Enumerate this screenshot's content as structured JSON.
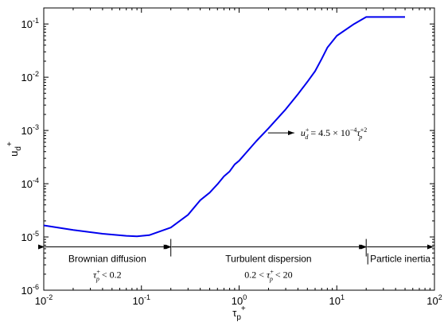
{
  "chart_data": {
    "type": "line",
    "xscale": "log",
    "yscale": "log",
    "xlim": [
      0.01,
      100
    ],
    "ylim": [
      1e-06,
      0.2
    ],
    "xlabel": "τp+",
    "ylabel": "ud+",
    "x_ticks": [
      {
        "value": 0.01,
        "base": "10",
        "exp": "-2"
      },
      {
        "value": 0.1,
        "base": "10",
        "exp": "-1"
      },
      {
        "value": 1,
        "base": "10",
        "exp": "0"
      },
      {
        "value": 10,
        "base": "10",
        "exp": "1"
      },
      {
        "value": 100,
        "base": "10",
        "exp": "2"
      }
    ],
    "y_ticks": [
      {
        "value": 1e-06,
        "base": "10",
        "exp": "-6"
      },
      {
        "value": 1e-05,
        "base": "10",
        "exp": "-5"
      },
      {
        "value": 0.0001,
        "base": "10",
        "exp": "-4"
      },
      {
        "value": 0.001,
        "base": "10",
        "exp": "-3"
      },
      {
        "value": 0.01,
        "base": "10",
        "exp": "-2"
      },
      {
        "value": 0.1,
        "base": "10",
        "exp": "-1"
      }
    ],
    "series": [
      {
        "color": "#0000ee",
        "x": [
          0.01,
          0.02,
          0.04,
          0.07,
          0.09,
          0.12,
          0.2,
          0.3,
          0.4,
          0.5,
          0.6,
          0.7,
          0.8,
          0.9,
          1.0,
          1.5,
          2,
          3,
          4,
          5,
          6,
          7,
          8,
          10,
          15,
          20,
          30,
          50
        ],
        "y": [
          1.65e-05,
          1.35e-05,
          1.15e-05,
          1.05e-05,
          1.03e-05,
          1.08e-05,
          1.5e-05,
          2.6e-05,
          4.9e-05,
          6.8e-05,
          9.8e-05,
          0.000138,
          0.00017,
          0.00023,
          0.00027,
          0.00063,
          0.0011,
          0.0025,
          0.0048,
          0.0082,
          0.013,
          0.022,
          0.036,
          0.06,
          0.1,
          0.135,
          0.135,
          0.135
        ]
      }
    ],
    "annotations": [
      {
        "text": "u_d^+ = 4.5 × 10^-4 τ_p^+2",
        "x": 1.8,
        "y": 0.0009
      }
    ],
    "regions": [
      {
        "label": "Brownian diffusion",
        "condition": "τp+ < 0.2",
        "from": 0.01,
        "to": 0.2
      },
      {
        "label": "Turbulent dispersion",
        "condition": "0.2 < τp+ < 20",
        "from": 0.2,
        "to": 20
      },
      {
        "label": "Particle inertia",
        "condition": "",
        "from": 20,
        "to": 100
      }
    ],
    "region_arrow_y": 6.5e-06,
    "grid": false
  }
}
